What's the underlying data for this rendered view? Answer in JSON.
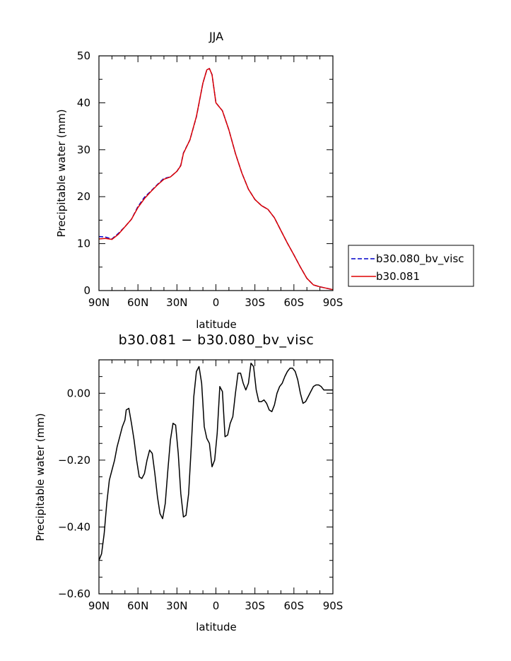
{
  "chart_data": [
    {
      "type": "line",
      "title": "JJA",
      "xlabel": "latitude",
      "ylabel": "Precipitable water (mm)",
      "xlim": [
        -90,
        90
      ],
      "ylim": [
        0,
        50
      ],
      "xticks": [
        {
          "value": -90,
          "label": "90N"
        },
        {
          "value": -60,
          "label": "60N"
        },
        {
          "value": -30,
          "label": "30N"
        },
        {
          "value": 0,
          "label": "0"
        },
        {
          "value": 30,
          "label": "30S"
        },
        {
          "value": 60,
          "label": "60S"
        },
        {
          "value": 90,
          "label": "90S"
        }
      ],
      "yticks": [
        0,
        10,
        20,
        30,
        40,
        50
      ],
      "grid": false,
      "legend_position": "right",
      "x": [
        -90,
        -85,
        -80,
        -75,
        -70,
        -65,
        -60,
        -55,
        -50,
        -45,
        -40,
        -35,
        -30,
        -27,
        -25,
        -20,
        -15,
        -10,
        -7,
        -5,
        -3,
        0,
        5,
        10,
        15,
        20,
        25,
        30,
        35,
        40,
        45,
        50,
        55,
        60,
        65,
        70,
        75,
        80,
        85,
        90
      ],
      "series": [
        {
          "name": "b30.080_bv_visc",
          "color": "#0000cc",
          "dash": "dashed",
          "values": [
            11.5,
            11.4,
            11.0,
            12.2,
            13.6,
            15.2,
            17.9,
            19.9,
            21.2,
            22.6,
            23.9,
            24.2,
            25.4,
            26.7,
            29.3,
            32.1,
            37.0,
            44.2,
            47.0,
            47.3,
            46.0,
            40.0,
            38.3,
            34.2,
            29.2,
            25.0,
            21.6,
            19.4,
            18.1,
            17.3,
            15.5,
            12.8,
            10.1,
            7.6,
            5.0,
            2.6,
            1.2,
            0.8,
            0.5,
            0.2
          ]
        },
        {
          "name": "b30.081",
          "color": "#dd0000",
          "dash": "solid",
          "values": [
            11.0,
            11.1,
            10.9,
            12.0,
            13.6,
            15.2,
            17.7,
            19.6,
            21.1,
            22.5,
            23.7,
            24.2,
            25.4,
            26.6,
            29.2,
            32.1,
            37.1,
            44.2,
            47.0,
            47.3,
            46.0,
            40.0,
            38.3,
            34.2,
            29.2,
            25.0,
            21.6,
            19.4,
            18.1,
            17.3,
            15.5,
            12.8,
            10.1,
            7.6,
            5.0,
            2.6,
            1.2,
            0.8,
            0.5,
            0.2
          ]
        }
      ]
    },
    {
      "type": "line",
      "title": "b30.081 − b30.080_bv_visc",
      "xlabel": "latitude",
      "ylabel": "Precipitable water (mm)",
      "xlim": [
        -90,
        90
      ],
      "ylim": [
        -0.6,
        0.1
      ],
      "xticks": [
        {
          "value": -90,
          "label": "90N"
        },
        {
          "value": -60,
          "label": "60N"
        },
        {
          "value": -30,
          "label": "30N"
        },
        {
          "value": 0,
          "label": "0"
        },
        {
          "value": 30,
          "label": "30S"
        },
        {
          "value": 60,
          "label": "60S"
        },
        {
          "value": 90,
          "label": "90S"
        }
      ],
      "yticks": [
        {
          "value": 0.0,
          "label": "0.00"
        },
        {
          "value": -0.2,
          "label": "−0.20"
        },
        {
          "value": -0.4,
          "label": "−0.40"
        },
        {
          "value": -0.6,
          "label": "−0.60"
        }
      ],
      "grid": false,
      "series": [
        {
          "color": "#000000",
          "x": [
            -90,
            -88,
            -86,
            -84,
            -82,
            -80,
            -78,
            -76,
            -74,
            -72,
            -70,
            -69,
            -67,
            -65,
            -63,
            -61,
            -59,
            -57,
            -55,
            -53,
            -51,
            -49,
            -47,
            -45,
            -43,
            -41,
            -39,
            -37,
            -35,
            -33,
            -31,
            -29,
            -27,
            -25,
            -23,
            -21,
            -19,
            -17,
            -15,
            -13,
            -11,
            -9,
            -7,
            -5,
            -3,
            -1,
            1,
            3,
            5,
            7,
            9,
            11,
            13,
            15,
            17,
            19,
            21,
            23,
            25,
            27,
            29,
            31,
            33,
            35,
            37,
            39,
            41,
            43,
            45,
            47,
            49,
            51,
            53,
            55,
            57,
            59,
            61,
            63,
            65,
            67,
            69,
            71,
            73,
            75,
            77,
            79,
            81,
            83,
            85,
            87,
            89,
            90
          ],
          "values": [
            -0.5,
            -0.48,
            -0.42,
            -0.33,
            -0.26,
            -0.23,
            -0.2,
            -0.16,
            -0.13,
            -0.1,
            -0.08,
            -0.05,
            -0.045,
            -0.09,
            -0.14,
            -0.2,
            -0.25,
            -0.255,
            -0.24,
            -0.2,
            -0.17,
            -0.18,
            -0.24,
            -0.31,
            -0.36,
            -0.375,
            -0.33,
            -0.23,
            -0.14,
            -0.09,
            -0.095,
            -0.18,
            -0.3,
            -0.37,
            -0.365,
            -0.3,
            -0.16,
            -0.01,
            0.065,
            0.08,
            0.03,
            -0.1,
            -0.135,
            -0.15,
            -0.22,
            -0.2,
            -0.12,
            0.02,
            0.005,
            -0.13,
            -0.125,
            -0.09,
            -0.07,
            0.0,
            0.06,
            0.06,
            0.03,
            0.01,
            0.03,
            0.09,
            0.08,
            0.01,
            -0.025,
            -0.025,
            -0.02,
            -0.03,
            -0.05,
            -0.055,
            -0.035,
            0.0,
            0.02,
            0.03,
            0.05,
            0.065,
            0.075,
            0.075,
            0.065,
            0.04,
            0.0,
            -0.03,
            -0.025,
            -0.01,
            0.005,
            0.02,
            0.025,
            0.025,
            0.02,
            0.01,
            0.01,
            0.01,
            0.01,
            0.01
          ]
        }
      ]
    }
  ]
}
